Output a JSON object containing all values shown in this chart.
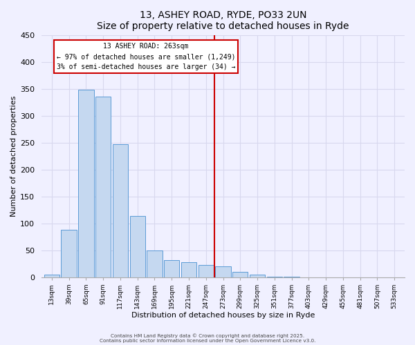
{
  "title": "13, ASHEY ROAD, RYDE, PO33 2UN",
  "subtitle": "Size of property relative to detached houses in Ryde",
  "xlabel": "Distribution of detached houses by size in Ryde",
  "ylabel": "Number of detached properties",
  "bar_color": "#c5d8f0",
  "bar_edge_color": "#5b9bd5",
  "categories": [
    "13sqm",
    "39sqm",
    "65sqm",
    "91sqm",
    "117sqm",
    "143sqm",
    "169sqm",
    "195sqm",
    "221sqm",
    "247sqm",
    "273sqm",
    "299sqm",
    "325sqm",
    "351sqm",
    "377sqm",
    "403sqm",
    "429sqm",
    "455sqm",
    "481sqm",
    "507sqm",
    "533sqm"
  ],
  "values": [
    5,
    88,
    348,
    335,
    247,
    113,
    50,
    32,
    28,
    22,
    20,
    10,
    4,
    1,
    1,
    0,
    0,
    0,
    0,
    0,
    0
  ],
  "ylim": [
    0,
    450
  ],
  "yticks": [
    0,
    50,
    100,
    150,
    200,
    250,
    300,
    350,
    400,
    450
  ],
  "vline_index": 10,
  "vline_color": "#cc0000",
  "annotation_title": "13 ASHEY ROAD: 263sqm",
  "annotation_line1": "← 97% of detached houses are smaller (1,249)",
  "annotation_line2": "3% of semi-detached houses are larger (34) →",
  "annotation_box_color": "#ffffff",
  "annotation_box_edge": "#cc0000",
  "bg_color": "#f0f0ff",
  "grid_color": "#d8d8ee",
  "footer1": "Contains HM Land Registry data © Crown copyright and database right 2025.",
  "footer2": "Contains public sector information licensed under the Open Government Licence v3.0."
}
